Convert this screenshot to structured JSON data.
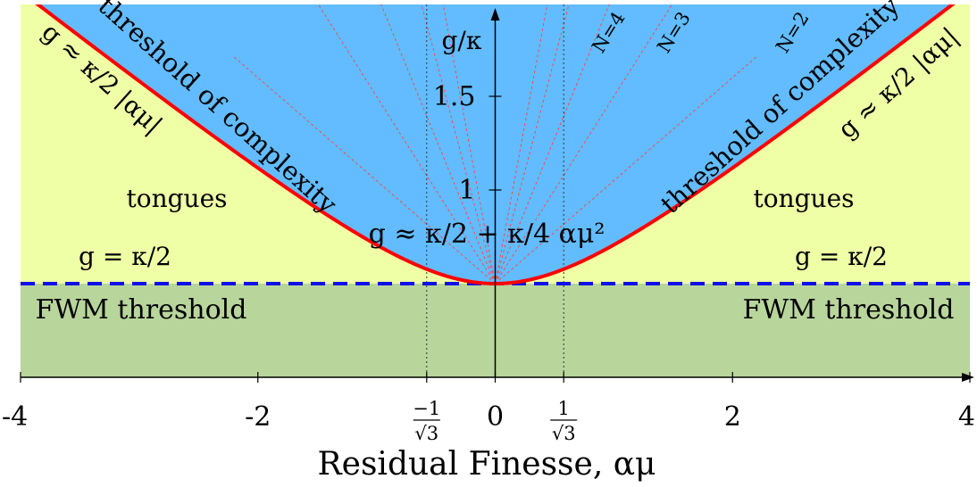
{
  "chart_data": {
    "type": "area",
    "xlabel": "Residual Finesse, αμ",
    "ylabel": "g/κ",
    "xlim": [
      -4,
      4
    ],
    "ylim": [
      0,
      2.0
    ],
    "x_ticks": [
      {
        "value": -4,
        "label": "-4"
      },
      {
        "value": -2,
        "label": "-2"
      },
      {
        "value": 0,
        "label": "0"
      },
      {
        "value": 2,
        "label": "2"
      },
      {
        "value": 4,
        "label": "4"
      }
    ],
    "x_special_ticks": [
      {
        "value": -0.57735,
        "numerator": "−1",
        "denominator": "√3"
      },
      {
        "value": 0.57735,
        "numerator": "1",
        "denominator": "√3"
      }
    ],
    "y_ticks": [
      {
        "value": 1,
        "label": "1"
      },
      {
        "value": 1.5,
        "label": "1.5"
      }
    ],
    "fwm_threshold_level": 0.5,
    "complexity_threshold_formula": "g = κ/2 · sqrt(1 + αμ²)",
    "regions": [
      {
        "name": "FWM threshold",
        "from": 0,
        "to": 0.5,
        "color": "#b8d59b"
      },
      {
        "name": "tongues",
        "color": "#efffa6"
      },
      {
        "name": "complexity",
        "color": "#62bcff"
      }
    ],
    "curves": {
      "complexity": {
        "color": "#ff0000"
      },
      "fwm": {
        "color": "#1010e6"
      },
      "guides": {
        "color": "#ff4040"
      }
    },
    "guide_slopes": [
      0.55,
      1.0,
      1.55,
      2.4,
      3.4
    ],
    "n_labels": [
      {
        "text": "N=2",
        "x": 2.55
      },
      {
        "text": "N=3",
        "x": 1.55
      },
      {
        "text": "N=4",
        "x": 1.0
      }
    ],
    "annotations": {
      "fwm_left": "FWM threshold",
      "fwm_right": "FWM threshold",
      "tongues_left": "tongues",
      "tongues_right": "tongues",
      "threshold_left": "threshold of complexity",
      "threshold_right": "threshold of complexity",
      "g_eq_left": "g = κ/2",
      "g_eq_right": "g = κ/2",
      "g_approx_left": "g ≈ κ/2 |αμ|",
      "g_approx_right": "g ≈ κ/2 |αμ|",
      "g_approx_center": "g ≈ κ/2 + κ/4 αμ²"
    }
  }
}
